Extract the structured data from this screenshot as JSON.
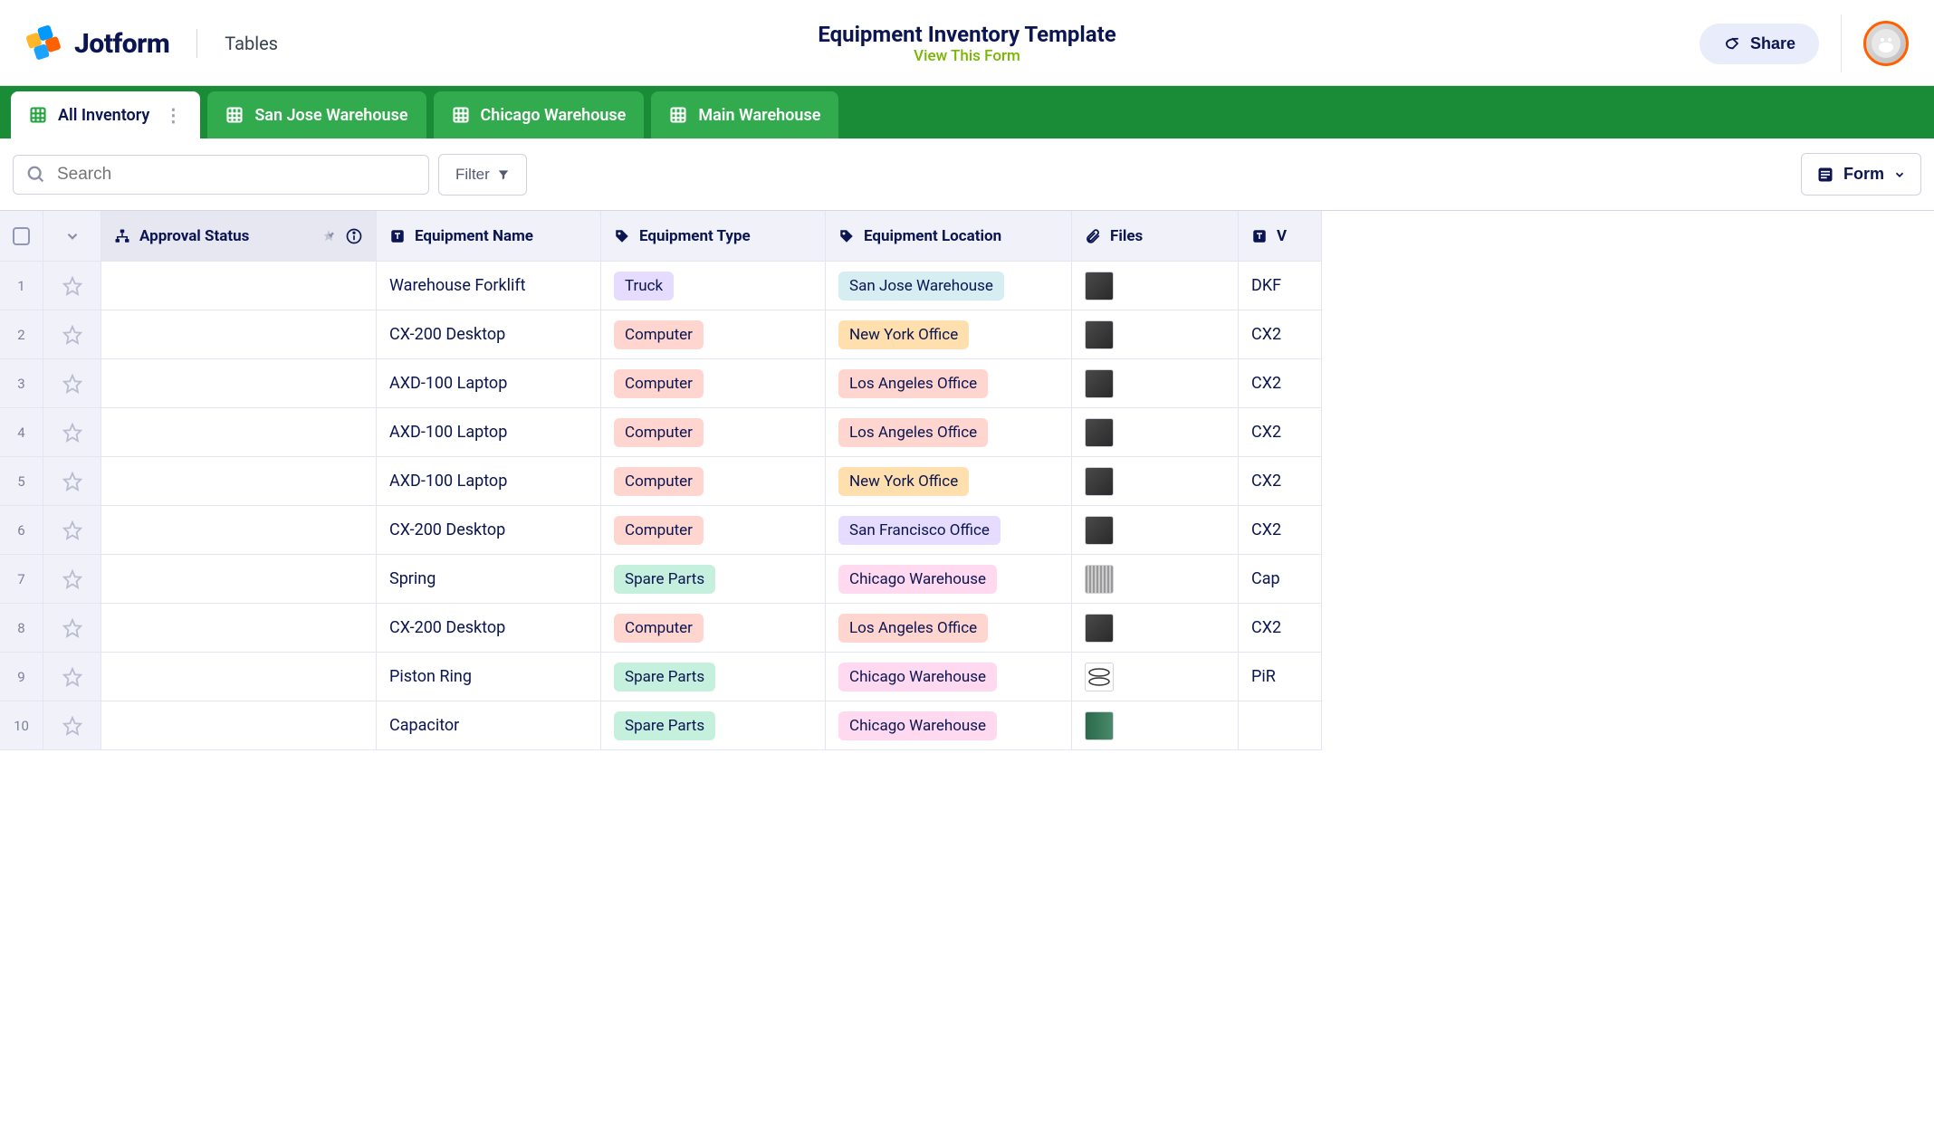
{
  "header": {
    "brand_name": "Jotform",
    "section": "Tables",
    "title": "Equipment Inventory Template",
    "view_link": "View This Form",
    "share_label": "Share"
  },
  "tabs": [
    {
      "label": "All Inventory",
      "active": true
    },
    {
      "label": "San Jose Warehouse",
      "active": false
    },
    {
      "label": "Chicago Warehouse",
      "active": false
    },
    {
      "label": "Main Warehouse",
      "active": false
    }
  ],
  "toolbar": {
    "search_placeholder": "Search",
    "filter_label": "Filter",
    "form_label": "Form"
  },
  "columns": {
    "approval": "Approval Status",
    "name": "Equipment Name",
    "type": "Equipment Type",
    "location": "Equipment Location",
    "files": "Files",
    "vendor_prefix": "V"
  },
  "tag_colors": {
    "Truck": "#e6dcff",
    "Computer": "#ffd6cf",
    "Spare Parts": "#c6f0de",
    "San Jose Warehouse": "#d6edf2",
    "New York Office": "#ffdfad",
    "Los Angeles Office": "#ffd6cf",
    "San Francisco Office": "#e6dcff",
    "Chicago Warehouse": "#ffd9f0"
  },
  "rows": [
    {
      "n": "1",
      "name": "Warehouse Forklift",
      "type": "Truck",
      "location": "San Jose Warehouse",
      "thumb": "dark",
      "vendor": "DKF"
    },
    {
      "n": "2",
      "name": "CX-200 Desktop",
      "type": "Computer",
      "location": "New York Office",
      "thumb": "dark",
      "vendor": "CX2"
    },
    {
      "n": "3",
      "name": "AXD-100 Laptop",
      "type": "Computer",
      "location": "Los Angeles Office",
      "thumb": "dark",
      "vendor": "CX2"
    },
    {
      "n": "4",
      "name": "AXD-100 Laptop",
      "type": "Computer",
      "location": "Los Angeles Office",
      "thumb": "dark",
      "vendor": "CX2"
    },
    {
      "n": "5",
      "name": "AXD-100 Laptop",
      "type": "Computer",
      "location": "New York Office",
      "thumb": "dark",
      "vendor": "CX2"
    },
    {
      "n": "6",
      "name": "CX-200 Desktop",
      "type": "Computer",
      "location": "San Francisco Office",
      "thumb": "dark",
      "vendor": "CX2"
    },
    {
      "n": "7",
      "name": "Spring",
      "type": "Spare Parts",
      "location": "Chicago Warehouse",
      "thumb": "light",
      "vendor": "Cap"
    },
    {
      "n": "8",
      "name": "CX-200 Desktop",
      "type": "Computer",
      "location": "Los Angeles Office",
      "thumb": "dark",
      "vendor": "CX2"
    },
    {
      "n": "9",
      "name": "Piston Ring",
      "type": "Spare Parts",
      "location": "Chicago Warehouse",
      "thumb": "ring",
      "vendor": "PiR"
    },
    {
      "n": "10",
      "name": "Capacitor",
      "type": "Spare Parts",
      "location": "Chicago Warehouse",
      "thumb": "chip",
      "vendor": ""
    }
  ],
  "colors": {
    "brand_navy": "#0a1551",
    "green_dark": "#1a8c38",
    "green_light": "#32ab4e",
    "orange": "#ff6100",
    "link_green": "#78b700"
  }
}
